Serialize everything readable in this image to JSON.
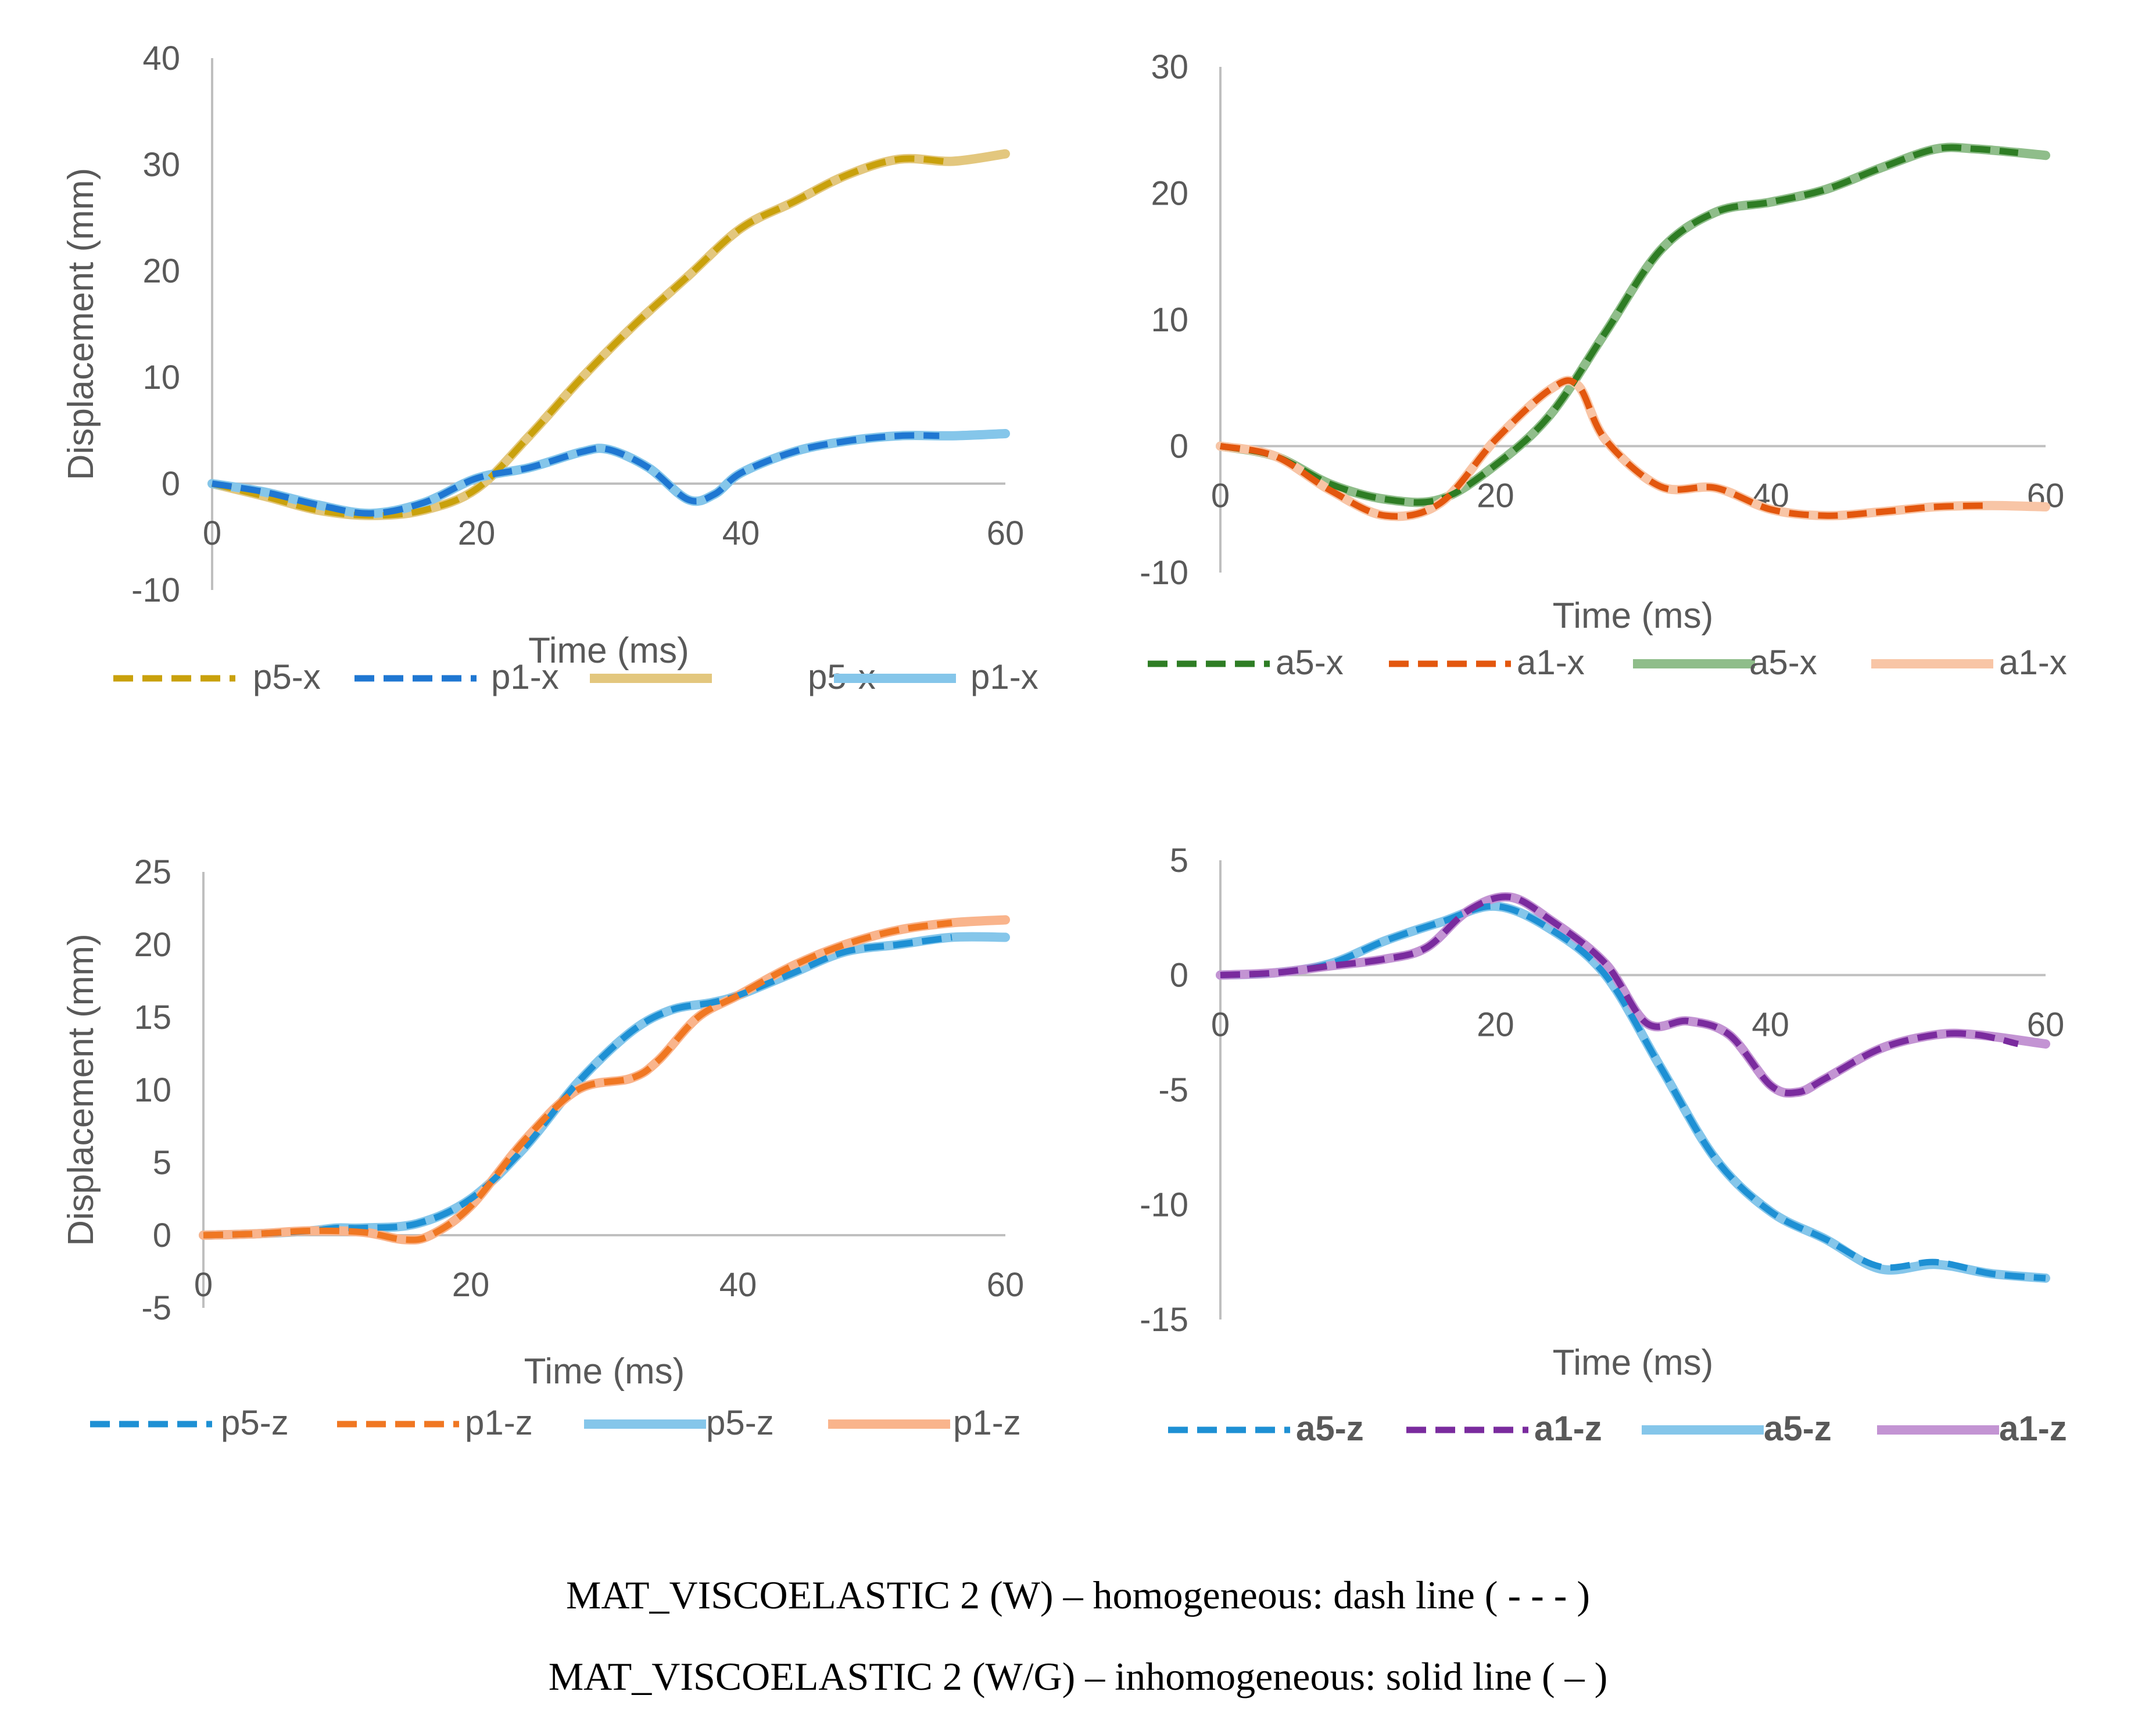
{
  "caption": {
    "line1": "MAT_VISCOELASTIC 2 (W) – homogeneous: dash line ( - - - )",
    "line2": "MAT_VISCOELASTIC 2 (W/G) – inhomogeneous: solid line ( – )"
  },
  "chart_data": [
    {
      "type": "line",
      "title": "",
      "xlabel": "Time (ms)",
      "ylabel": "Displacement (mm)",
      "xlim": [
        0,
        60
      ],
      "ylim": [
        -10,
        40
      ],
      "xticks": [
        0,
        20,
        40,
        60
      ],
      "yticks": [
        -10,
        0,
        10,
        20,
        30,
        40
      ],
      "legend_position": "bottom",
      "legend_bold": false,
      "series": [
        {
          "name": "p5-x",
          "style": "dash",
          "color": "#c9a10c",
          "x": [
            0,
            4,
            8,
            12,
            16,
            20,
            24,
            28,
            32,
            36,
            40,
            44,
            48,
            52,
            56
          ],
          "y": [
            0,
            -1.2,
            -2.5,
            -3,
            -2.5,
            -0.5,
            4.5,
            10,
            15,
            19.5,
            24,
            26.5,
            29,
            30.5,
            30.2
          ]
        },
        {
          "name": "p1-x",
          "style": "dash",
          "color": "#1f77d2",
          "x": [
            0,
            4,
            8,
            12,
            16,
            20,
            24,
            28,
            30,
            33,
            36,
            38,
            40,
            44,
            48,
            52,
            55
          ],
          "y": [
            0,
            -0.8,
            -2,
            -2.8,
            -1.8,
            0.5,
            1.5,
            3,
            3.2,
            1.5,
            -1.5,
            -1,
            1,
            3,
            4,
            4.5,
            4.5
          ]
        },
        {
          "name": "p5-x",
          "style": "solid",
          "color": "#e3c77e",
          "x": [
            0,
            4,
            8,
            12,
            16,
            20,
            24,
            28,
            32,
            36,
            40,
            44,
            48,
            52,
            56,
            60
          ],
          "y": [
            0,
            -1.2,
            -2.5,
            -3,
            -2.5,
            -0.5,
            4.5,
            10,
            15,
            19.5,
            24,
            26.5,
            29,
            30.5,
            30.3,
            31
          ]
        },
        {
          "name": "p1-x",
          "style": "solid",
          "color": "#85c6ea",
          "x": [
            0,
            4,
            8,
            12,
            16,
            20,
            24,
            28,
            30,
            33,
            36,
            38,
            40,
            44,
            48,
            52,
            56,
            60
          ],
          "y": [
            0,
            -0.8,
            -2,
            -2.8,
            -1.8,
            0.5,
            1.5,
            3,
            3.2,
            1.5,
            -1.5,
            -1,
            1,
            3,
            4,
            4.5,
            4.5,
            4.7
          ]
        }
      ]
    },
    {
      "type": "line",
      "title": "",
      "xlabel": "Time (ms)",
      "ylabel": "",
      "xlim": [
        0,
        60
      ],
      "ylim": [
        -10,
        30
      ],
      "xticks": [
        0,
        20,
        40,
        60
      ],
      "yticks": [
        -10,
        0,
        10,
        20,
        30
      ],
      "legend_position": "bottom",
      "legend_bold": false,
      "series": [
        {
          "name": "a5-x",
          "style": "dash",
          "color": "#2e7d24",
          "x": [
            0,
            4,
            8,
            12,
            16,
            20,
            24,
            28,
            32,
            36,
            40,
            44,
            48,
            52,
            55,
            58
          ],
          "y": [
            0,
            -0.8,
            -3,
            -4.2,
            -4.2,
            -1.5,
            2.5,
            9,
            15.5,
            18.5,
            19.3,
            20.3,
            22,
            23.5,
            23.5,
            23.2
          ]
        },
        {
          "name": "a1-x",
          "style": "dash",
          "color": "#e3570e",
          "x": [
            0,
            4,
            8,
            12,
            16,
            20,
            24,
            26,
            28,
            32,
            36,
            40,
            44,
            48,
            52,
            56
          ],
          "y": [
            0,
            -0.8,
            -3.5,
            -5.5,
            -4.5,
            0.5,
            4.5,
            4.8,
            0.5,
            -3.2,
            -3.3,
            -5,
            -5.5,
            -5.2,
            -4.8,
            -4.7
          ]
        },
        {
          "name": "a5-x",
          "style": "solid",
          "color": "#8fbd8a",
          "x": [
            0,
            4,
            8,
            12,
            16,
            20,
            24,
            28,
            32,
            36,
            40,
            44,
            48,
            52,
            55,
            60
          ],
          "y": [
            0,
            -0.8,
            -3,
            -4.2,
            -4.2,
            -1.5,
            2.5,
            9,
            15.5,
            18.5,
            19.3,
            20.3,
            22,
            23.5,
            23.5,
            23
          ]
        },
        {
          "name": "a1-x",
          "style": "solid",
          "color": "#f8c5a6",
          "x": [
            0,
            4,
            8,
            12,
            16,
            20,
            24,
            26,
            28,
            32,
            36,
            40,
            44,
            48,
            52,
            56,
            60
          ],
          "y": [
            0,
            -0.8,
            -3.5,
            -5.5,
            -4.5,
            0.5,
            4.5,
            4.8,
            0.5,
            -3.2,
            -3.3,
            -5,
            -5.5,
            -5.2,
            -4.8,
            -4.7,
            -4.8
          ]
        }
      ]
    },
    {
      "type": "line",
      "title": "",
      "xlabel": "Time (ms)",
      "ylabel": "Displacement (mm)",
      "xlim": [
        0,
        60
      ],
      "ylim": [
        -5,
        25
      ],
      "xticks": [
        0,
        20,
        40,
        60
      ],
      "yticks": [
        -5,
        0,
        5,
        10,
        15,
        20,
        25
      ],
      "legend_position": "bottom",
      "legend_bold": false,
      "series": [
        {
          "name": "p5-z",
          "style": "dash",
          "color": "#1e90d4",
          "x": [
            0,
            4,
            8,
            10,
            12,
            16,
            20,
            24,
            28,
            32,
            35,
            38,
            40,
            44,
            48,
            52,
            56
          ],
          "y": [
            0,
            0.1,
            0.3,
            0.5,
            0.5,
            0.8,
            2.5,
            6,
            10.5,
            14,
            15.5,
            16,
            16.5,
            18,
            19.5,
            20,
            20.5
          ]
        },
        {
          "name": "p1-z",
          "style": "dash",
          "color": "#f07722",
          "x": [
            0,
            4,
            8,
            12,
            15,
            17,
            20,
            24,
            28,
            32,
            34,
            37,
            40,
            44,
            48,
            52,
            56
          ],
          "y": [
            0,
            0.1,
            0.3,
            0.2,
            -0.3,
            0,
            2,
            6.5,
            10,
            10.8,
            12,
            15,
            16.5,
            18.5,
            20,
            21,
            21.5
          ]
        },
        {
          "name": "p5-z",
          "style": "solid",
          "color": "#85c6ea",
          "x": [
            0,
            4,
            8,
            10,
            12,
            16,
            20,
            24,
            28,
            32,
            35,
            38,
            40,
            44,
            48,
            52,
            56,
            60
          ],
          "y": [
            0,
            0.1,
            0.3,
            0.5,
            0.5,
            0.8,
            2.5,
            6,
            10.5,
            14,
            15.5,
            16,
            16.5,
            18,
            19.5,
            20,
            20.5,
            20.5
          ]
        },
        {
          "name": "p1-z",
          "style": "solid",
          "color": "#f9b48c",
          "x": [
            0,
            4,
            8,
            12,
            15,
            17,
            20,
            24,
            28,
            32,
            34,
            37,
            40,
            44,
            48,
            52,
            56,
            60
          ],
          "y": [
            0,
            0.1,
            0.3,
            0.2,
            -0.3,
            0,
            2,
            6.5,
            10,
            10.8,
            12,
            15,
            16.5,
            18.5,
            20,
            21,
            21.5,
            21.7
          ]
        }
      ]
    },
    {
      "type": "line",
      "title": "",
      "xlabel": "Time (ms)",
      "ylabel": "",
      "xlim": [
        0,
        60
      ],
      "ylim": [
        -15,
        5
      ],
      "xticks": [
        0,
        20,
        40,
        60
      ],
      "yticks": [
        -15,
        -10,
        -5,
        0,
        5
      ],
      "legend_position": "bottom",
      "legend_bold": true,
      "series": [
        {
          "name": "a5-z",
          "style": "dash",
          "color": "#1e90d4",
          "x": [
            0,
            4,
            8,
            12,
            16,
            20,
            24,
            28,
            32,
            36,
            40,
            44,
            48,
            52,
            56,
            60
          ],
          "y": [
            0,
            0.1,
            0.5,
            1.5,
            2.3,
            3,
            2,
            0,
            -4,
            -8,
            -10.3,
            -11.5,
            -12.7,
            -12.5,
            -13,
            -13.2
          ]
        },
        {
          "name": "a1-z",
          "style": "dash",
          "color": "#7a2b9e",
          "x": [
            0,
            4,
            8,
            12,
            15,
            18,
            21,
            24,
            28,
            31,
            34,
            37,
            40,
            42,
            44,
            48,
            52,
            55,
            58
          ],
          "y": [
            0,
            0.1,
            0.4,
            0.7,
            1.2,
            2.8,
            3.4,
            2.4,
            0.5,
            -2.1,
            -2,
            -2.6,
            -4.8,
            -5.1,
            -4.5,
            -3.2,
            -2.6,
            -2.6,
            -3
          ]
        },
        {
          "name": "a5-z",
          "style": "solid",
          "color": "#85c6ea",
          "x": [
            0,
            4,
            8,
            12,
            16,
            20,
            24,
            28,
            32,
            36,
            40,
            44,
            48,
            52,
            56,
            60
          ],
          "y": [
            0,
            0.1,
            0.5,
            1.5,
            2.3,
            3,
            2,
            0,
            -4,
            -8,
            -10.3,
            -11.5,
            -12.8,
            -12.6,
            -13,
            -13.2
          ]
        },
        {
          "name": "a1-z",
          "style": "solid",
          "color": "#c394d3",
          "x": [
            0,
            4,
            8,
            12,
            15,
            18,
            21,
            24,
            28,
            31,
            34,
            37,
            40,
            42,
            44,
            48,
            52,
            55,
            60
          ],
          "y": [
            0,
            0.1,
            0.4,
            0.7,
            1.2,
            2.8,
            3.4,
            2.4,
            0.5,
            -2.1,
            -2,
            -2.6,
            -4.8,
            -5.1,
            -4.5,
            -3.2,
            -2.6,
            -2.6,
            -3
          ]
        }
      ]
    }
  ]
}
